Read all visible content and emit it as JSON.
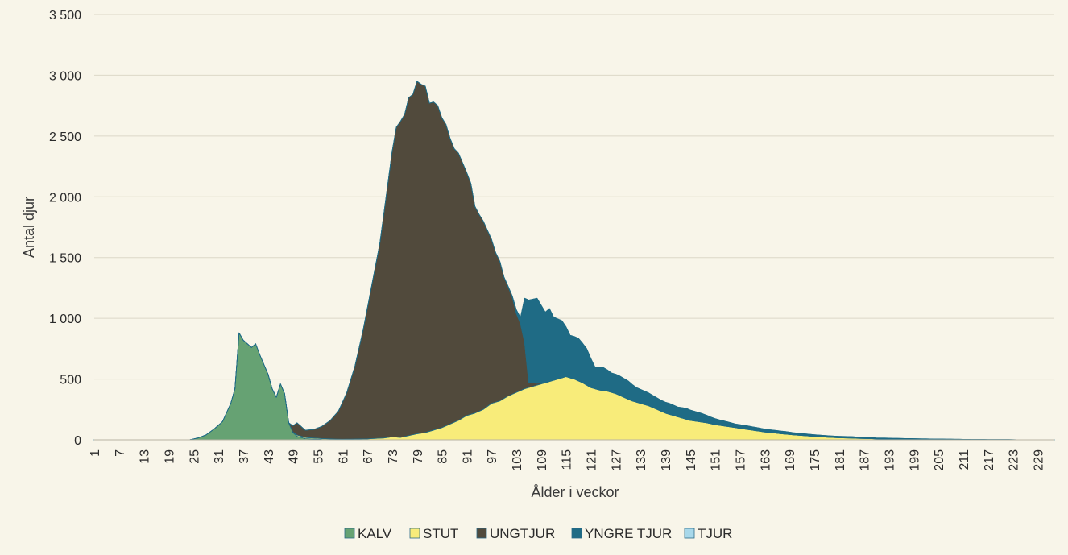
{
  "chart_data": {
    "type": "area",
    "stacked": true,
    "xlabel": "Ålder i veckor",
    "ylabel": "Antal djur",
    "ylim": [
      0,
      3500
    ],
    "xlim": [
      1,
      233
    ],
    "y_ticks": [
      0,
      500,
      1000,
      1500,
      2000,
      2500,
      3000,
      3500
    ],
    "y_tick_labels": [
      "0",
      "500",
      "1 000",
      "1 500",
      "2 000",
      "2 500",
      "3 000",
      "3 500"
    ],
    "x_ticks": [
      1,
      7,
      13,
      19,
      25,
      31,
      37,
      43,
      49,
      55,
      61,
      67,
      73,
      79,
      85,
      91,
      97,
      103,
      109,
      115,
      121,
      127,
      133,
      139,
      145,
      151,
      157,
      163,
      169,
      175,
      181,
      187,
      193,
      199,
      205,
      211,
      217,
      223,
      229
    ],
    "grid": "horizontal",
    "legend_position": "bottom",
    "series": [
      {
        "name": "KALV",
        "color": "#66a273",
        "points": [
          [
            1,
            0
          ],
          [
            24,
            0
          ],
          [
            26,
            15
          ],
          [
            28,
            40
          ],
          [
            30,
            90
          ],
          [
            32,
            150
          ],
          [
            34,
            300
          ],
          [
            35,
            420
          ],
          [
            36,
            880
          ],
          [
            37,
            820
          ],
          [
            38,
            790
          ],
          [
            39,
            760
          ],
          [
            40,
            790
          ],
          [
            41,
            700
          ],
          [
            42,
            620
          ],
          [
            43,
            540
          ],
          [
            44,
            420
          ],
          [
            45,
            350
          ],
          [
            46,
            460
          ],
          [
            47,
            380
          ],
          [
            48,
            140
          ],
          [
            49,
            60
          ],
          [
            50,
            30
          ],
          [
            52,
            10
          ],
          [
            56,
            3
          ],
          [
            60,
            0
          ],
          [
            233,
            0
          ]
        ]
      },
      {
        "name": "STUT",
        "color": "#f8ec7a",
        "points": [
          [
            1,
            0
          ],
          [
            48,
            0
          ],
          [
            50,
            10
          ],
          [
            55,
            8
          ],
          [
            61,
            5
          ],
          [
            67,
            8
          ],
          [
            71,
            15
          ],
          [
            73,
            25
          ],
          [
            75,
            20
          ],
          [
            77,
            35
          ],
          [
            79,
            50
          ],
          [
            81,
            60
          ],
          [
            83,
            80
          ],
          [
            85,
            100
          ],
          [
            87,
            130
          ],
          [
            89,
            160
          ],
          [
            91,
            200
          ],
          [
            93,
            220
          ],
          [
            95,
            250
          ],
          [
            97,
            300
          ],
          [
            99,
            320
          ],
          [
            101,
            360
          ],
          [
            103,
            390
          ],
          [
            105,
            420
          ],
          [
            107,
            440
          ],
          [
            109,
            460
          ],
          [
            111,
            480
          ],
          [
            113,
            500
          ],
          [
            115,
            520
          ],
          [
            117,
            500
          ],
          [
            119,
            470
          ],
          [
            121,
            430
          ],
          [
            123,
            410
          ],
          [
            125,
            400
          ],
          [
            127,
            380
          ],
          [
            129,
            350
          ],
          [
            131,
            320
          ],
          [
            133,
            300
          ],
          [
            135,
            280
          ],
          [
            137,
            250
          ],
          [
            139,
            220
          ],
          [
            141,
            200
          ],
          [
            143,
            180
          ],
          [
            145,
            160
          ],
          [
            147,
            150
          ],
          [
            149,
            140
          ],
          [
            151,
            125
          ],
          [
            153,
            115
          ],
          [
            155,
            105
          ],
          [
            157,
            95
          ],
          [
            159,
            85
          ],
          [
            161,
            75
          ],
          [
            163,
            65
          ],
          [
            165,
            58
          ],
          [
            167,
            50
          ],
          [
            169,
            44
          ],
          [
            171,
            38
          ],
          [
            173,
            33
          ],
          [
            175,
            28
          ],
          [
            177,
            24
          ],
          [
            179,
            20
          ],
          [
            181,
            17
          ],
          [
            183,
            15
          ],
          [
            185,
            13
          ],
          [
            187,
            11
          ],
          [
            189,
            9
          ],
          [
            191,
            7
          ],
          [
            193,
            6
          ],
          [
            195,
            5
          ],
          [
            197,
            4
          ],
          [
            199,
            3
          ],
          [
            203,
            2
          ],
          [
            210,
            1
          ],
          [
            215,
            0
          ],
          [
            233,
            0
          ]
        ]
      },
      {
        "name": "UNGTJUR",
        "color": "#514a3c",
        "points": [
          [
            1,
            0
          ],
          [
            48,
            0
          ],
          [
            50,
            100
          ],
          [
            52,
            60
          ],
          [
            54,
            70
          ],
          [
            56,
            100
          ],
          [
            58,
            150
          ],
          [
            60,
            230
          ],
          [
            62,
            380
          ],
          [
            64,
            600
          ],
          [
            66,
            900
          ],
          [
            68,
            1250
          ],
          [
            70,
            1600
          ],
          [
            72,
            2100
          ],
          [
            73,
            2350
          ],
          [
            74,
            2550
          ],
          [
            75,
            2600
          ],
          [
            76,
            2650
          ],
          [
            77,
            2780
          ],
          [
            78,
            2800
          ],
          [
            79,
            2900
          ],
          [
            80,
            2870
          ],
          [
            81,
            2850
          ],
          [
            82,
            2700
          ],
          [
            83,
            2700
          ],
          [
            84,
            2660
          ],
          [
            85,
            2550
          ],
          [
            86,
            2480
          ],
          [
            87,
            2350
          ],
          [
            88,
            2250
          ],
          [
            89,
            2200
          ],
          [
            90,
            2100
          ],
          [
            91,
            2000
          ],
          [
            92,
            1900
          ],
          [
            93,
            1700
          ],
          [
            94,
            1620
          ],
          [
            95,
            1550
          ],
          [
            96,
            1450
          ],
          [
            97,
            1350
          ],
          [
            98,
            1230
          ],
          [
            99,
            1150
          ],
          [
            100,
            1000
          ],
          [
            101,
            900
          ],
          [
            102,
            800
          ],
          [
            103,
            650
          ],
          [
            104,
            550
          ],
          [
            105,
            380
          ],
          [
            106,
            40
          ],
          [
            108,
            15
          ],
          [
            110,
            0
          ],
          [
            233,
            0
          ]
        ]
      },
      {
        "name": "YNGRE TJUR",
        "color": "#1f6b85",
        "points": [
          [
            1,
            0
          ],
          [
            100,
            0
          ],
          [
            102,
            10
          ],
          [
            104,
            50
          ],
          [
            106,
            680
          ],
          [
            108,
            700
          ],
          [
            110,
            580
          ],
          [
            111,
            600
          ],
          [
            112,
            520
          ],
          [
            114,
            470
          ],
          [
            116,
            350
          ],
          [
            118,
            350
          ],
          [
            120,
            300
          ],
          [
            122,
            180
          ],
          [
            124,
            190
          ],
          [
            126,
            160
          ],
          [
            128,
            160
          ],
          [
            130,
            150
          ],
          [
            132,
            120
          ],
          [
            134,
            110
          ],
          [
            136,
            100
          ],
          [
            138,
            90
          ],
          [
            140,
            90
          ],
          [
            142,
            80
          ],
          [
            144,
            90
          ],
          [
            146,
            80
          ],
          [
            148,
            70
          ],
          [
            150,
            55
          ],
          [
            152,
            45
          ],
          [
            154,
            38
          ],
          [
            156,
            30
          ],
          [
            158,
            30
          ],
          [
            160,
            28
          ],
          [
            162,
            25
          ],
          [
            164,
            22
          ],
          [
            166,
            22
          ],
          [
            168,
            22
          ],
          [
            170,
            18
          ],
          [
            172,
            16
          ],
          [
            174,
            15
          ],
          [
            176,
            14
          ],
          [
            178,
            13
          ],
          [
            180,
            12
          ],
          [
            182,
            12
          ],
          [
            184,
            12
          ],
          [
            186,
            10
          ],
          [
            188,
            10
          ],
          [
            190,
            8
          ],
          [
            192,
            8
          ],
          [
            194,
            7
          ],
          [
            196,
            7
          ],
          [
            198,
            7
          ],
          [
            200,
            6
          ],
          [
            202,
            6
          ],
          [
            204,
            5
          ],
          [
            206,
            5
          ],
          [
            208,
            4
          ],
          [
            210,
            4
          ],
          [
            212,
            3
          ],
          [
            214,
            3
          ],
          [
            216,
            3
          ],
          [
            218,
            2
          ],
          [
            220,
            2
          ],
          [
            222,
            2
          ],
          [
            224,
            1
          ],
          [
            226,
            0
          ],
          [
            233,
            0
          ]
        ]
      },
      {
        "name": "TJUR",
        "color": "#a8d8ea",
        "points": [
          [
            1,
            0
          ],
          [
            233,
            0
          ]
        ]
      }
    ]
  }
}
